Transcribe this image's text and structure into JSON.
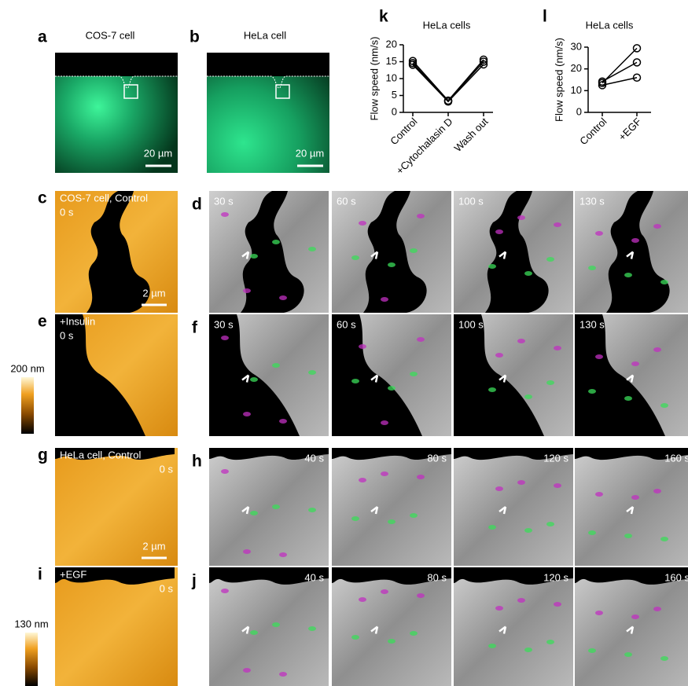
{
  "panels": {
    "a": {
      "label": "a",
      "title": "COS-7 cell",
      "scale_bar": "20 µm"
    },
    "b": {
      "label": "b",
      "title": "HeLa cell",
      "scale_bar": "20 µm"
    },
    "c": {
      "label": "c",
      "title": "COS-7 cell, Control",
      "time": "0 s",
      "scale_bar": "2 µm"
    },
    "d": {
      "label": "d",
      "times": [
        "30 s",
        "60 s",
        "100 s",
        "130 s"
      ]
    },
    "e": {
      "label": "e",
      "title": "+Insulin",
      "time": "0 s"
    },
    "f": {
      "label": "f",
      "times": [
        "30 s",
        "60 s",
        "100 s",
        "130 s"
      ]
    },
    "g": {
      "label": "g",
      "title": "HeLa cell, Control",
      "time": "0 s",
      "scale_bar": "2 µm"
    },
    "h": {
      "label": "h",
      "times": [
        "40 s",
        "80 s",
        "120 s",
        "160 s"
      ]
    },
    "i": {
      "label": "i",
      "title": "+EGF",
      "time": "0 s"
    },
    "j": {
      "label": "j",
      "times": [
        "40 s",
        "80 s",
        "120 s",
        "160 s"
      ]
    }
  },
  "colorbars": [
    {
      "label": "200 nm"
    },
    {
      "label": "130 nm"
    }
  ],
  "chart_data": [
    {
      "type": "line",
      "panel": "k",
      "title": "HeLa cells",
      "y_label": "Flow speed (nm/s)",
      "categories": [
        "Control",
        "+Cytochalasin D",
        "Wash out"
      ],
      "series": [
        {
          "color": "#000000",
          "values": [
            15.2,
            3.5,
            15.6
          ]
        },
        {
          "color": "#000000",
          "values": [
            14.1,
            3.2,
            14.2
          ]
        },
        {
          "color": "#000000",
          "values": [
            14.6,
            3.4,
            15.0
          ]
        }
      ],
      "ylim": [
        0,
        20
      ],
      "yticks": [
        0,
        5,
        10,
        15,
        20
      ]
    },
    {
      "type": "line",
      "panel": "l",
      "title": "HeLa cells",
      "y_label": "Flow speed (nm/s)",
      "categories": [
        "Control",
        "+EGF"
      ],
      "series": [
        {
          "color": "#000000",
          "values": [
            13.5,
            29.5
          ]
        },
        {
          "color": "#000000",
          "values": [
            14.2,
            23
          ]
        },
        {
          "color": "#000000",
          "values": [
            12.5,
            16
          ]
        }
      ],
      "ylim": [
        0,
        30
      ],
      "yticks": [
        0,
        10,
        20,
        30
      ]
    }
  ]
}
